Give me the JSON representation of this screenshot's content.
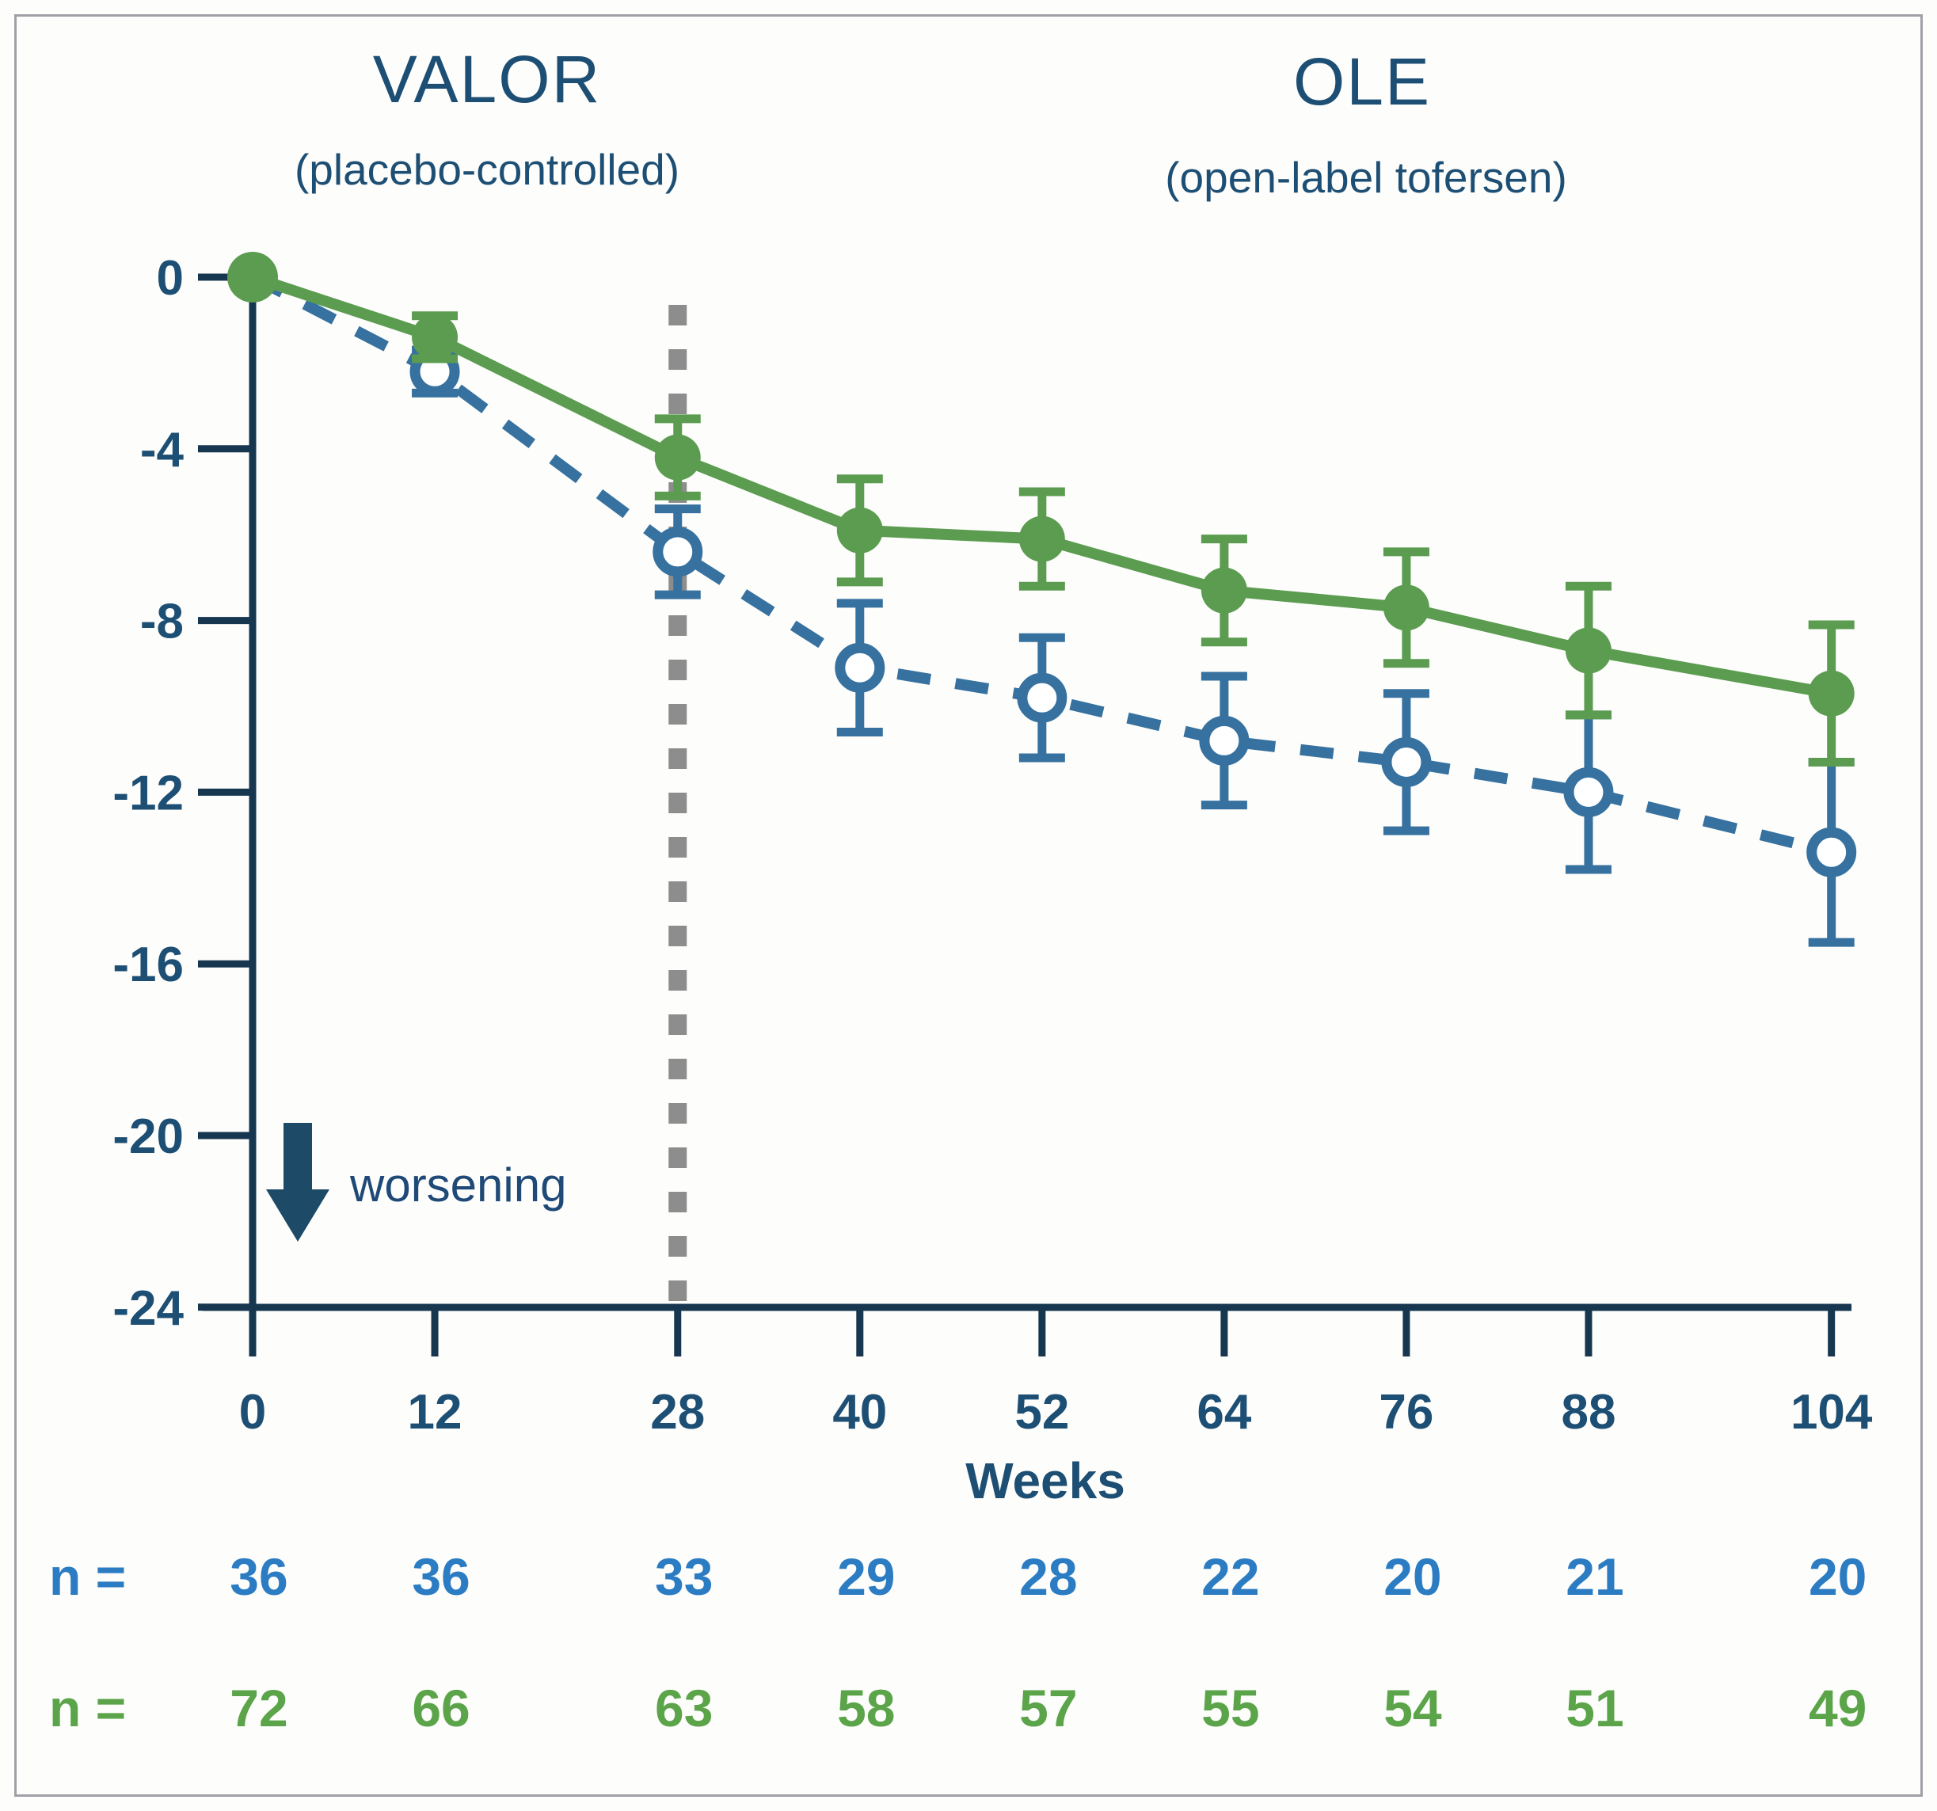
{
  "page": {
    "background": "#fdfdfb",
    "frame_border": "#9fa1a7"
  },
  "header": {
    "left": {
      "title": "VALOR",
      "subtitle": "(placebo-controlled)"
    },
    "right": {
      "title": "OLE",
      "subtitle": "(open-label tofersen)"
    }
  },
  "annotation": {
    "worsening_label": "worsening"
  },
  "chart_data": {
    "type": "line",
    "x": [
      0,
      12,
      28,
      40,
      52,
      64,
      76,
      88,
      104
    ],
    "x_tick_labels": [
      "0",
      "12",
      "28",
      "40",
      "52",
      "64",
      "76",
      "88",
      "104"
    ],
    "xlabel": "Weeks",
    "yticks": [
      0,
      -4,
      -8,
      -12,
      -16,
      -20,
      -24
    ],
    "ylim": [
      -24,
      0
    ],
    "grid": false,
    "phase_divider_week": 28,
    "divider_color": "#8d8d8d",
    "axis_color": "#17364f",
    "label_color": "#1d4e74",
    "series": [
      {
        "name": "blue dashed (open circles)",
        "marker": "open-circle",
        "line_style": "dashed",
        "color": "#36719f",
        "values": [
          0,
          -2.2,
          -6.4,
          -9.1,
          -9.8,
          -10.8,
          -11.3,
          -12.0,
          -13.4
        ],
        "error": [
          0,
          0.5,
          1.0,
          1.5,
          1.4,
          1.5,
          1.6,
          1.8,
          2.1
        ],
        "n": [
          36,
          36,
          33,
          29,
          28,
          22,
          20,
          21,
          20
        ]
      },
      {
        "name": "green solid (filled circles)",
        "marker": "filled-circle",
        "line_style": "solid",
        "color": "#5b9c50",
        "values": [
          0,
          -1.4,
          -4.2,
          -5.9,
          -6.1,
          -7.3,
          -7.7,
          -8.7,
          -9.7
        ],
        "error": [
          0,
          0.5,
          0.9,
          1.2,
          1.1,
          1.2,
          1.3,
          1.5,
          1.6
        ],
        "n": [
          72,
          66,
          63,
          58,
          57,
          55,
          54,
          51,
          49
        ]
      }
    ]
  },
  "counts": {
    "row_blue": {
      "label": "n =",
      "color": "#2b7cc2"
    },
    "row_green": {
      "label": "n =",
      "color": "#5ba449"
    }
  }
}
